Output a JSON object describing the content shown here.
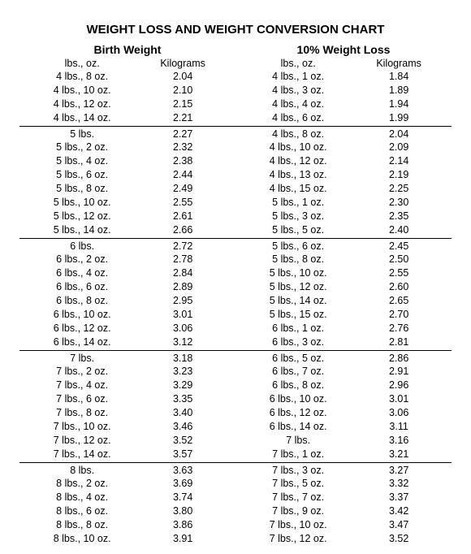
{
  "title": "WEIGHT LOSS AND WEIGHT CONVERSION CHART",
  "left": {
    "heading": "Birth Weight",
    "col1": "lbs., oz.",
    "col2": "Kilograms",
    "groups": [
      [
        {
          "w": "4 lbs., 8 oz.",
          "kg": "2.04"
        },
        {
          "w": "4 lbs., 10 oz.",
          "kg": "2.10"
        },
        {
          "w": "4 lbs., 12 oz.",
          "kg": "2.15"
        },
        {
          "w": "4 lbs., 14 oz.",
          "kg": "2.21"
        }
      ],
      [
        {
          "w": "5 lbs.",
          "kg": "2.27"
        },
        {
          "w": "5 lbs., 2 oz.",
          "kg": "2.32"
        },
        {
          "w": "5 lbs., 4 oz.",
          "kg": "2.38"
        },
        {
          "w": "5 lbs., 6 oz.",
          "kg": "2.44"
        },
        {
          "w": "5 lbs., 8 oz.",
          "kg": "2.49"
        },
        {
          "w": "5 lbs., 10 oz.",
          "kg": "2.55"
        },
        {
          "w": "5 lbs., 12 oz.",
          "kg": "2.61"
        },
        {
          "w": "5 lbs., 14 oz.",
          "kg": "2.66"
        }
      ],
      [
        {
          "w": "6 lbs.",
          "kg": "2.72"
        },
        {
          "w": "6 lbs., 2 oz.",
          "kg": "2.78"
        },
        {
          "w": "6 lbs., 4 oz.",
          "kg": "2.84"
        },
        {
          "w": "6 lbs., 6 oz.",
          "kg": "2.89"
        },
        {
          "w": "6 lbs., 8 oz.",
          "kg": "2.95"
        },
        {
          "w": "6 lbs., 10 oz.",
          "kg": "3.01"
        },
        {
          "w": "6 lbs., 12 oz.",
          "kg": "3.06"
        },
        {
          "w": "6 lbs., 14 oz.",
          "kg": "3.12"
        }
      ],
      [
        {
          "w": "7 lbs.",
          "kg": "3.18"
        },
        {
          "w": "7 lbs., 2 oz.",
          "kg": "3.23"
        },
        {
          "w": "7 lbs., 4 oz.",
          "kg": "3.29"
        },
        {
          "w": "7 lbs., 6 oz.",
          "kg": "3.35"
        },
        {
          "w": "7 lbs., 8 oz.",
          "kg": "3.40"
        },
        {
          "w": "7 lbs., 10 oz.",
          "kg": "3.46"
        },
        {
          "w": "7 lbs., 12 oz.",
          "kg": "3.52"
        },
        {
          "w": "7 lbs., 14 oz.",
          "kg": "3.57"
        }
      ],
      [
        {
          "w": "8 lbs.",
          "kg": "3.63"
        },
        {
          "w": "8 lbs., 2 oz.",
          "kg": "3.69"
        },
        {
          "w": "8 lbs., 4 oz.",
          "kg": "3.74"
        },
        {
          "w": "8 lbs., 6 oz.",
          "kg": "3.80"
        },
        {
          "w": "8 lbs., 8 oz.",
          "kg": "3.86"
        },
        {
          "w": "8 lbs., 10 oz.",
          "kg": "3.91"
        }
      ]
    ]
  },
  "right": {
    "heading": "10% Weight Loss",
    "col1": "lbs., oz.",
    "col2": "Kilograms",
    "groups": [
      [
        {
          "w": "4 lbs., 1 oz.",
          "kg": "1.84"
        },
        {
          "w": "4 lbs., 3 oz.",
          "kg": "1.89"
        },
        {
          "w": "4 lbs., 4 oz.",
          "kg": "1.94"
        },
        {
          "w": "4 lbs., 6 oz.",
          "kg": "1.99"
        }
      ],
      [
        {
          "w": "4 lbs., 8 oz.",
          "kg": "2.04"
        },
        {
          "w": "4 lbs., 10 oz.",
          "kg": "2.09"
        },
        {
          "w": "4 lbs., 12 oz.",
          "kg": "2.14"
        },
        {
          "w": "4 lbs., 13 oz.",
          "kg": "2.19"
        },
        {
          "w": "4 lbs., 15 oz.",
          "kg": "2.25"
        },
        {
          "w": "5 lbs., 1 oz.",
          "kg": "2.30"
        },
        {
          "w": "5 lbs., 3 oz.",
          "kg": "2.35"
        },
        {
          "w": "5 lbs., 5 oz.",
          "kg": "2.40"
        }
      ],
      [
        {
          "w": "5 lbs., 6 oz.",
          "kg": "2.45"
        },
        {
          "w": "5 lbs., 8 oz.",
          "kg": "2.50"
        },
        {
          "w": "5 lbs., 10 oz.",
          "kg": "2.55"
        },
        {
          "w": "5 lbs., 12 oz.",
          "kg": "2.60"
        },
        {
          "w": "5 lbs., 14 oz.",
          "kg": "2.65"
        },
        {
          "w": "5 lbs., 15 oz.",
          "kg": "2.70"
        },
        {
          "w": "6 lbs., 1 oz.",
          "kg": "2.76"
        },
        {
          "w": "6 lbs., 3 oz.",
          "kg": "2.81"
        }
      ],
      [
        {
          "w": "6 lbs., 5 oz.",
          "kg": "2.86"
        },
        {
          "w": "6 lbs., 7 oz.",
          "kg": "2.91"
        },
        {
          "w": "6 lbs., 8 oz.",
          "kg": "2.96"
        },
        {
          "w": "6 lbs., 10 oz.",
          "kg": "3.01"
        },
        {
          "w": "6 lbs., 12 oz.",
          "kg": "3.06"
        },
        {
          "w": "6 lbs., 14 oz.",
          "kg": "3.11"
        },
        {
          "w": "7 lbs.",
          "kg": "3.16"
        },
        {
          "w": "7 lbs., 1 oz.",
          "kg": "3.21"
        }
      ],
      [
        {
          "w": "7 lbs., 3 oz.",
          "kg": "3.27"
        },
        {
          "w": "7 lbs., 5 oz.",
          "kg": "3.32"
        },
        {
          "w": "7 lbs., 7 oz.",
          "kg": "3.37"
        },
        {
          "w": "7 lbs., 9 oz.",
          "kg": "3.42"
        },
        {
          "w": "7 lbs., 10 oz.",
          "kg": "3.47"
        },
        {
          "w": "7 lbs., 12 oz.",
          "kg": "3.52"
        }
      ]
    ]
  }
}
